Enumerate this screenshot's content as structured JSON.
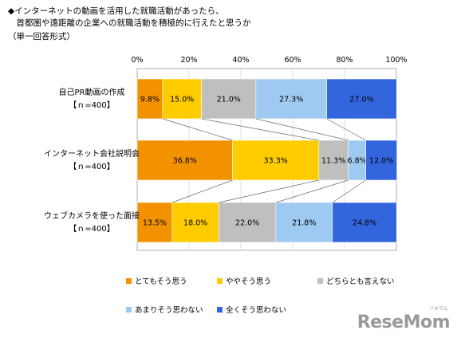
{
  "title_lines": [
    "◆インターネットの動画を活用した就職活動があったら、",
    "　首都圏や遠距離の企業への就職活動を積極的に行えたと思うか",
    "（単一回答形式）"
  ],
  "watermark": "ReseMom",
  "watermark_small": "リセマム",
  "chart_data": {
    "type": "bar",
    "orientation": "horizontal",
    "stacked": true,
    "percent": true,
    "xlim": [
      0,
      100
    ],
    "x_ticks": [
      "0%",
      "20%",
      "40%",
      "60%",
      "80%",
      "100%"
    ],
    "categories": [
      [
        "自己PR動画の作成",
        "【ｎ=400】"
      ],
      [
        "インターネット会社説明会",
        "【ｎ=400】"
      ],
      [
        "ウェブカメラを使った面接",
        "【ｎ=400】"
      ]
    ],
    "series": [
      {
        "name": "とてもそう思う",
        "color": "#f39200",
        "values": [
          9.8,
          36.8,
          13.5
        ],
        "labels": [
          "9.8%",
          "36.8%",
          "13.5%"
        ]
      },
      {
        "name": "ややそう思う",
        "color": "#ffcc00",
        "values": [
          15.0,
          33.3,
          18.0
        ],
        "labels": [
          "15.0%",
          "33.3%",
          "18.0%"
        ]
      },
      {
        "name": "どちらとも言えない",
        "color": "#bfbfbf",
        "values": [
          21.0,
          11.3,
          22.0
        ],
        "labels": [
          "21.0%",
          "11.3%",
          "22.0%"
        ]
      },
      {
        "name": "あまりそう思わない",
        "color": "#9ec9f0",
        "values": [
          27.3,
          6.8,
          21.8
        ],
        "labels": [
          "27.3%",
          "6.8%",
          "21.8%"
        ]
      },
      {
        "name": "全くそう思わない",
        "color": "#3366dd",
        "values": [
          27.0,
          12.0,
          24.8
        ],
        "labels": [
          "27.0%",
          "12.0%",
          "24.8%"
        ]
      }
    ],
    "legend_position": "bottom",
    "connector_lines": true
  }
}
